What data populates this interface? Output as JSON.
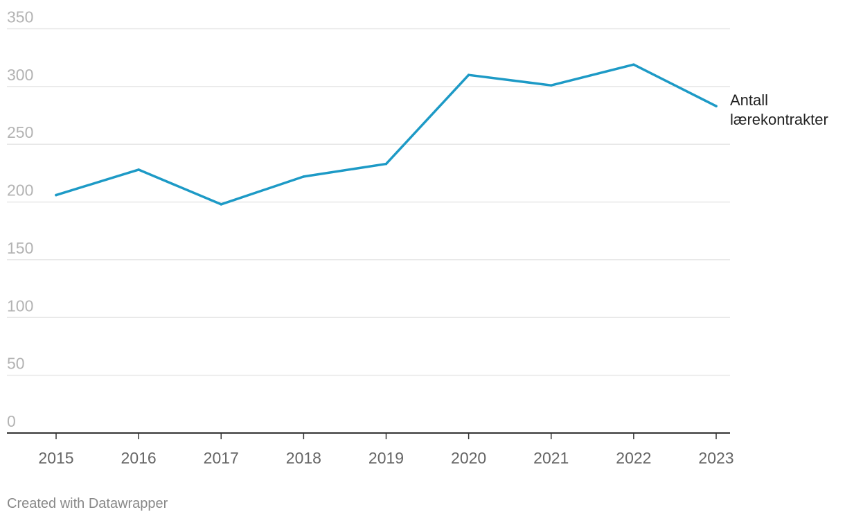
{
  "chart_data": {
    "type": "line",
    "x": [
      "2015",
      "2016",
      "2017",
      "2018",
      "2019",
      "2020",
      "2021",
      "2022",
      "2023"
    ],
    "series": [
      {
        "name": "Antall lærekontrakter",
        "label_lines": [
          "Antall",
          "lærekontrakter"
        ],
        "values": [
          206,
          228,
          198,
          222,
          233,
          310,
          301,
          319,
          283
        ],
        "color": "#1d9ac6"
      }
    ],
    "y_ticks": [
      0,
      50,
      100,
      150,
      200,
      250,
      300,
      350
    ],
    "ylim": [
      0,
      350
    ],
    "grid": true
  },
  "footer": {
    "credit": "Created with Datawrapper"
  }
}
